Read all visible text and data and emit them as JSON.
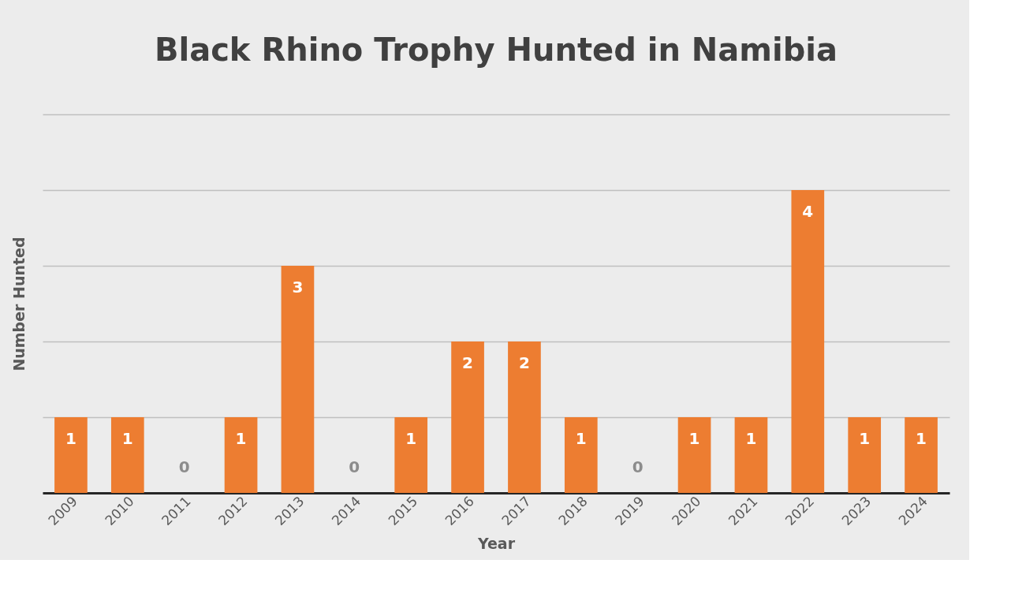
{
  "chart_data": {
    "type": "bar",
    "title": "Black Rhino Trophy Hunted in Namibia",
    "xlabel": "Year",
    "ylabel": "Number Hunted",
    "categories": [
      "2009",
      "2010",
      "2011",
      "2012",
      "2013",
      "2014",
      "2015",
      "2016",
      "2017",
      "2018",
      "2019",
      "2020",
      "2021",
      "2022",
      "2023",
      "2024"
    ],
    "values": [
      1,
      1,
      0,
      1,
      3,
      0,
      1,
      2,
      2,
      1,
      0,
      1,
      1,
      4,
      1,
      1
    ],
    "color": "#ed7d31",
    "ylim": [
      0,
      5
    ],
    "yticks": [
      {
        "value": 0,
        "label": null
      },
      {
        "value": 1,
        "label": null
      },
      {
        "value": 2,
        "label": null
      },
      {
        "value": 3,
        "label": null
      },
      {
        "value": 4,
        "label": null
      },
      {
        "value": 5,
        "label": null
      }
    ],
    "tick_labels": "x",
    "grid": "y",
    "data_labels": true
  }
}
